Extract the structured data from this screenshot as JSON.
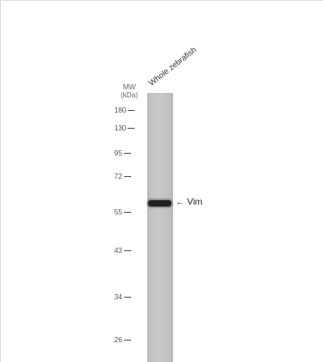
{
  "lane_label": "Whole zebrafish",
  "mw_title_line1": "MW",
  "mw_title_line2": "(kDa)",
  "markers": [
    "180",
    "130",
    "95",
    "72",
    "55",
    "43",
    "34",
    "26"
  ],
  "band_label": "Vim",
  "arrow_glyph": "←",
  "colors": {
    "lane": "#c4c4c4",
    "band": "#222222",
    "text": "#555555"
  }
}
